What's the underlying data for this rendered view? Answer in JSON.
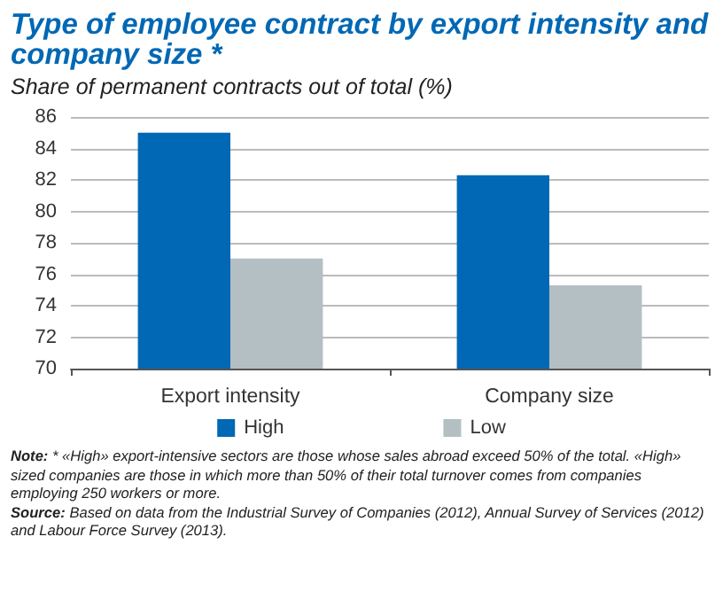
{
  "chart_data": {
    "type": "bar",
    "title": "Type of employee contract by export intensity and company size *",
    "subtitle": "Share of permanent contracts out of total (%)",
    "categories": [
      "Export intensity",
      "Company size"
    ],
    "series": [
      {
        "name": "High",
        "color": "#0068b4",
        "values": [
          85.0,
          82.3
        ]
      },
      {
        "name": "Low",
        "color": "#b4bfc3",
        "values": [
          77.0,
          75.3
        ]
      }
    ],
    "ylim": [
      70,
      86
    ],
    "yticks": [
      70,
      72,
      74,
      76,
      78,
      80,
      82,
      84,
      86
    ],
    "grid": "y",
    "legend": "bottom",
    "annotations": [
      "Note: * «High» export-intensive sectors are those whose sales abroad exceed 50% of the total. «High» sized companies are those in which more than 50% of their total turnover comes from companies employing 250 workers or more.",
      "Source: Based on data from the Industrial Survey of Companies (2012), Annual Survey of Services (2012) and Labour Force Survey (2013)."
    ]
  }
}
